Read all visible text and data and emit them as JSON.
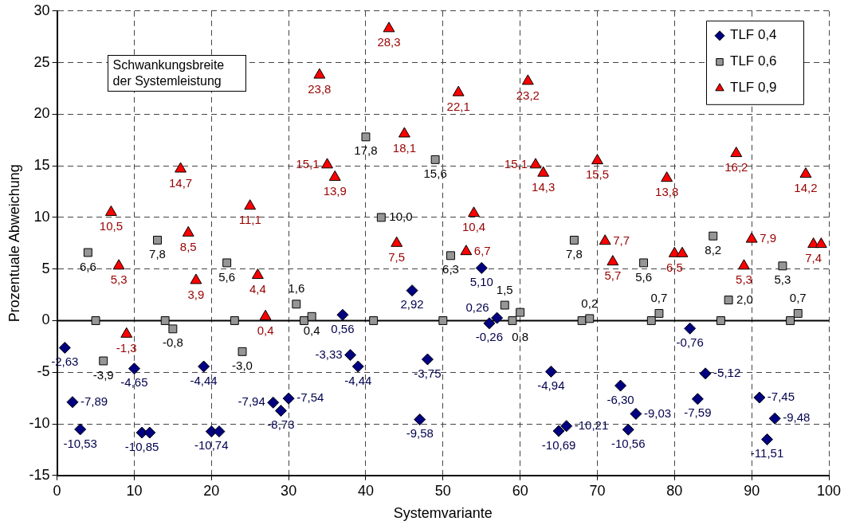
{
  "chart_data": {
    "type": "scatter",
    "xlabel": "Systemvariante",
    "ylabel": "Prozentuale Abweichung",
    "xlim": [
      0,
      100
    ],
    "xticks": [
      0,
      10,
      20,
      30,
      40,
      50,
      60,
      70,
      80,
      90,
      100
    ],
    "ylim": [
      -15,
      30
    ],
    "yticks": [
      -15,
      -10,
      -5,
      0,
      5,
      10,
      15,
      20,
      25,
      30
    ],
    "grid": true,
    "legend": "top right",
    "ref_lines": [
      {
        "axis": "y",
        "value": 0,
        "color": "#000000",
        "line_style": "solid"
      }
    ],
    "annotations": [
      "Schwankungsbreite der Systemleistung"
    ],
    "series": [
      {
        "name": "TLF 0,4",
        "color": "#000080",
        "marker": "diamond",
        "x": [
          1,
          2,
          3,
          10,
          11,
          12,
          19,
          20,
          21,
          28,
          29,
          30,
          37,
          38,
          39,
          46,
          47,
          48,
          55,
          56,
          57,
          64,
          65,
          66,
          73,
          74,
          75,
          82,
          83,
          84,
          91,
          92,
          93
        ],
        "values": [
          -2.63,
          -7.89,
          -10.53,
          -4.65,
          -10.85,
          -10.85,
          -4.44,
          -10.74,
          -10.74,
          -7.94,
          -8.73,
          -7.54,
          0.56,
          -3.33,
          -4.44,
          2.92,
          -9.58,
          -3.75,
          5.1,
          -0.26,
          0.26,
          -4.94,
          -10.69,
          -10.21,
          -6.3,
          -10.56,
          -9.03,
          -0.76,
          -7.59,
          -5.12,
          -7.45,
          -11.51,
          -9.48
        ],
        "value_labels": [
          "-2,63",
          "-7,89",
          "-10,53",
          "-4,65",
          "-10,85",
          null,
          "-4,44",
          "-10,74",
          null,
          "-7,94",
          "-8,73",
          "-7,54",
          "0,56",
          "-3,33",
          "-4,44",
          "2,92",
          "-9,58",
          "-3,75",
          "5,10",
          "-0,26",
          "0,26",
          "-4,94",
          "-10,69",
          "-10,21",
          "-6,30",
          "-10,56",
          "-9,03",
          "-0,76",
          "-7,59",
          "-5,12",
          "-7,45",
          "-11,51",
          "-9,48"
        ]
      },
      {
        "name": "TLF 0,6",
        "color": "#969696",
        "marker": "square",
        "x": [
          4,
          5,
          6,
          13,
          14,
          15,
          22,
          23,
          24,
          31,
          32,
          33,
          40,
          41,
          42,
          49,
          50,
          51,
          58,
          59,
          60,
          67,
          68,
          69,
          76,
          77,
          78,
          85,
          86,
          87,
          94,
          95,
          96
        ],
        "values": [
          6.6,
          0,
          -3.9,
          7.8,
          0,
          -0.8,
          5.6,
          0,
          -3.0,
          1.6,
          0,
          0.4,
          17.8,
          0,
          10.0,
          15.6,
          0,
          6.3,
          1.5,
          0,
          0.8,
          7.8,
          0,
          0.2,
          5.6,
          0,
          0.7,
          8.2,
          0,
          2.0,
          5.3,
          0,
          0.7
        ],
        "value_labels": [
          "6,6",
          null,
          "-3,9",
          "7,8",
          null,
          "-0,8",
          "5,6",
          null,
          "-3,0",
          "1,6",
          null,
          "0,4",
          "17,8",
          null,
          "10,0",
          "15,6",
          null,
          "6,3",
          "1,5",
          null,
          "0,8",
          "7,8",
          null,
          "0,2",
          "5,6",
          null,
          "0,7",
          "8,2",
          null,
          "2,0",
          "5,3",
          null,
          "0,7"
        ]
      },
      {
        "name": "TLF 0,9",
        "color": "#ff0000",
        "marker": "triangle",
        "x": [
          7,
          8,
          9,
          16,
          17,
          18,
          25,
          26,
          27,
          34,
          35,
          36,
          43,
          44,
          45,
          52,
          53,
          54,
          61,
          62,
          63,
          70,
          71,
          72,
          79,
          80,
          81,
          88,
          89,
          90,
          97,
          98,
          99
        ],
        "values": [
          10.5,
          5.3,
          -1.3,
          14.7,
          8.5,
          3.9,
          11.1,
          4.4,
          0.4,
          23.8,
          15.1,
          13.9,
          28.3,
          7.5,
          18.1,
          22.1,
          6.7,
          10.4,
          23.2,
          15.1,
          14.3,
          15.5,
          7.7,
          5.7,
          13.8,
          6.5,
          6.5,
          16.2,
          5.3,
          7.9,
          14.2,
          7.4,
          7.4
        ],
        "value_labels": [
          "10,5",
          "5,3",
          "-1,3",
          "14,7",
          "8,5",
          "3,9",
          "11,1",
          "4,4",
          "0,4",
          "23,8",
          "15,1",
          "13,9",
          "28,3",
          "7,5",
          "18,1",
          "22,1",
          "6,7",
          "10,4",
          "23,2",
          "15,1",
          "14,3",
          "15,5",
          "7,7",
          "5,7",
          "13,8",
          "6,5",
          null,
          "16,2",
          "5,3",
          "7,9",
          "14,2",
          "7,4",
          null
        ]
      }
    ]
  }
}
